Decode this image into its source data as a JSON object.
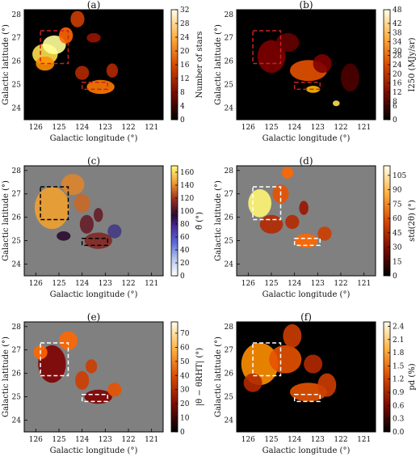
{
  "chart_data": [
    {
      "type": "heatmap",
      "panel_label": "(a)",
      "xlabel": "Galactic longitude (°)",
      "ylabel": "Galactic latitude (°)",
      "xlim": [
        126.5,
        120.5
      ],
      "ylim": [
        23.5,
        28.2
      ],
      "xticks": [
        "126",
        "125",
        "124",
        "123",
        "122",
        "121"
      ],
      "yticks": [
        "24",
        "25",
        "26",
        "27",
        "28"
      ],
      "background": "#000000",
      "colormap": "afmhot",
      "colorbar_label": "Number of stars",
      "colorbar_range": [
        0,
        32
      ],
      "colorbar_ticks": [
        "0",
        "4",
        "8",
        "12",
        "16",
        "20",
        "24",
        "28",
        "32"
      ],
      "box_style": "dashed",
      "box_color": "#cc2222",
      "boxes": [
        {
          "l": [
            125.8,
            124.6
          ],
          "b": [
            25.9,
            27.3
          ]
        },
        {
          "l": [
            124.0,
            122.9
          ],
          "b": [
            24.8,
            25.1
          ]
        }
      ]
    },
    {
      "type": "heatmap",
      "panel_label": "(b)",
      "xlabel": "Galactic longitude (°)",
      "ylabel": "Galactic latitude (°)",
      "xlim": [
        126.5,
        120.5
      ],
      "ylim": [
        23.5,
        28.2
      ],
      "xticks": [
        "126",
        "125",
        "124",
        "123",
        "122",
        "121"
      ],
      "yticks": [
        "24",
        "25",
        "26",
        "27",
        "28"
      ],
      "background": "#000000",
      "colormap": "afmhot",
      "colorbar_label": "I250 (MJy/sr)",
      "colorbar_range": [
        0,
        48
      ],
      "colorbar_ticks": [
        "0",
        "6",
        "8",
        "12",
        "16",
        "20",
        "24",
        "28",
        "30",
        "34",
        "38",
        "42",
        "48"
      ],
      "box_style": "dashed",
      "box_color": "#cc2222",
      "boxes": [
        {
          "l": [
            125.8,
            124.6
          ],
          "b": [
            25.9,
            27.3
          ]
        },
        {
          "l": [
            124.0,
            122.9
          ],
          "b": [
            24.8,
            25.1
          ]
        }
      ]
    },
    {
      "type": "heatmap",
      "panel_label": "(c)",
      "xlabel": "Galactic longitude (°)",
      "ylabel": "Galactic latitude (°)",
      "xlim": [
        126.5,
        120.5
      ],
      "ylim": [
        23.5,
        28.2
      ],
      "xticks": [
        "126",
        "125",
        "124",
        "123",
        "122",
        "121"
      ],
      "yticks": [
        "24",
        "25",
        "26",
        "27",
        "28"
      ],
      "background": "#808080",
      "colormap": "cubehelix",
      "colorbar_label": "θ̄ (°)",
      "colorbar_range": [
        0,
        170
      ],
      "colorbar_ticks": [
        "0",
        "20",
        "40",
        "60",
        "80",
        "100",
        "120",
        "140",
        "160"
      ],
      "box_style": "dashed",
      "box_color": "#000000",
      "boxes": [
        {
          "l": [
            125.8,
            124.6
          ],
          "b": [
            25.9,
            27.3
          ]
        },
        {
          "l": [
            124.0,
            122.9
          ],
          "b": [
            24.8,
            25.1
          ]
        }
      ]
    },
    {
      "type": "heatmap",
      "panel_label": "(d)",
      "xlabel": "Galactic longitude (°)",
      "ylabel": "Galactic latitude (°)",
      "xlim": [
        126.5,
        120.5
      ],
      "ylim": [
        23.5,
        28.2
      ],
      "xticks": [
        "126",
        "125",
        "124",
        "123",
        "122",
        "121"
      ],
      "yticks": [
        "24",
        "25",
        "26",
        "27",
        "28"
      ],
      "background": "#808080",
      "colormap": "afmhot",
      "colorbar_label": "std(2θ) (°)",
      "colorbar_range": [
        0,
        115
      ],
      "colorbar_ticks": [
        "0",
        "15",
        "30",
        "45",
        "60",
        "75",
        "90",
        "105"
      ],
      "box_style": "dashed",
      "box_color": "#ffffff",
      "boxes": [
        {
          "l": [
            125.8,
            124.6
          ],
          "b": [
            25.9,
            27.3
          ]
        },
        {
          "l": [
            124.0,
            122.9
          ],
          "b": [
            24.8,
            25.1
          ]
        }
      ]
    },
    {
      "type": "heatmap",
      "panel_label": "(e)",
      "xlabel": "Galactic longitude (°)",
      "ylabel": "Galactic latitude (°)",
      "xlim": [
        126.5,
        120.5
      ],
      "ylim": [
        23.5,
        28.2
      ],
      "xticks": [
        "126",
        "125",
        "124",
        "123",
        "122",
        "121"
      ],
      "yticks": [
        "24",
        "25",
        "26",
        "27",
        "28"
      ],
      "background": "#808080",
      "colormap": "afmhot",
      "colorbar_label": "|θ − θRHT| (°)",
      "colorbar_range": [
        0,
        78
      ],
      "colorbar_ticks": [
        "0",
        "10",
        "20",
        "30",
        "40",
        "50",
        "60",
        "70"
      ],
      "box_style": "dashed",
      "box_color": "#ffffff",
      "boxes": [
        {
          "l": [
            125.8,
            124.6
          ],
          "b": [
            25.9,
            27.3
          ]
        },
        {
          "l": [
            124.0,
            122.9
          ],
          "b": [
            24.8,
            25.1
          ]
        }
      ]
    },
    {
      "type": "heatmap",
      "panel_label": "(f)",
      "xlabel": "Galactic longitude (°)",
      "ylabel": "Galactic latitude (°)",
      "xlim": [
        126.5,
        120.5
      ],
      "ylim": [
        23.5,
        28.2
      ],
      "xticks": [
        "126",
        "125",
        "124",
        "123",
        "122",
        "121"
      ],
      "yticks": [
        "24",
        "25",
        "26",
        "27",
        "28"
      ],
      "background": "#000000",
      "colormap": "afmhot",
      "colorbar_label": "pd (%)",
      "colorbar_range": [
        0,
        2.5
      ],
      "colorbar_ticks": [
        "0.0",
        "0.3",
        "0.6",
        "0.9",
        "1.2",
        "1.5",
        "1.8",
        "2.1",
        "2.4"
      ],
      "box_style": "dashed",
      "box_color": "#ffffff",
      "boxes": [
        {
          "l": [
            125.8,
            124.6
          ],
          "b": [
            25.9,
            27.3
          ]
        },
        {
          "l": [
            124.0,
            122.9
          ],
          "b": [
            24.8,
            25.1
          ]
        }
      ]
    }
  ]
}
